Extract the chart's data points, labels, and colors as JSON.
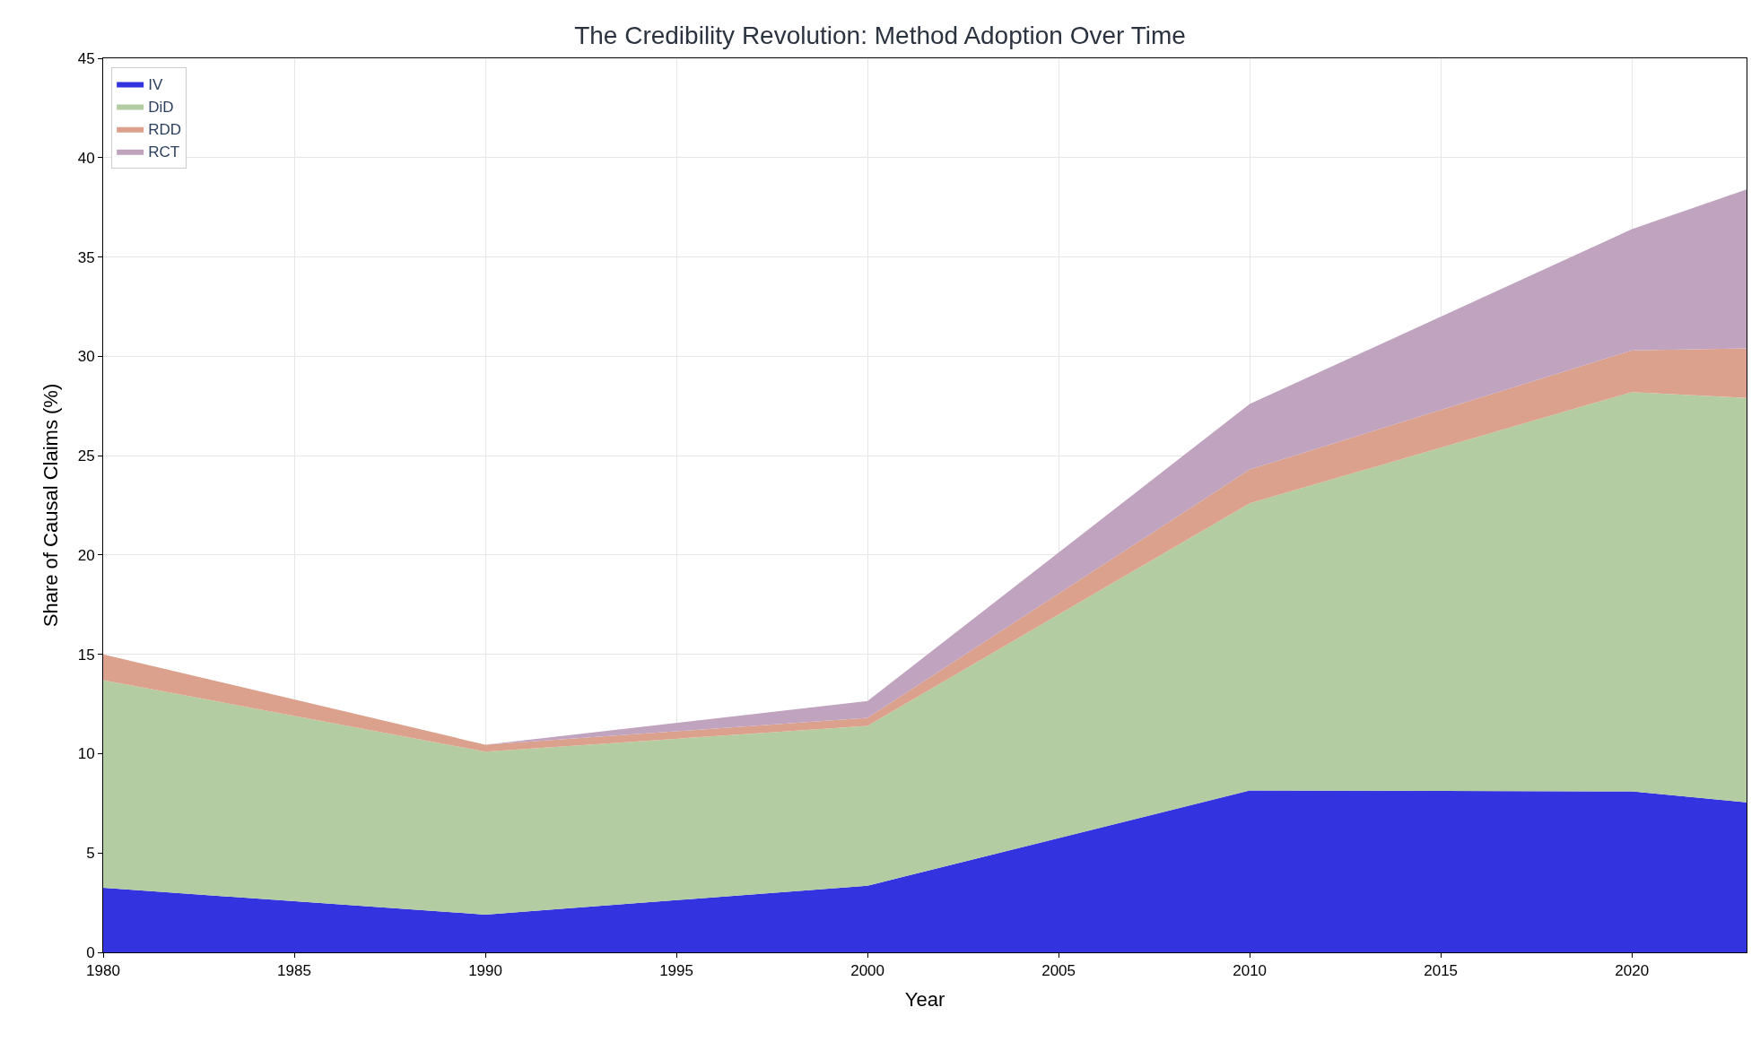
{
  "chart_data": {
    "type": "area",
    "stacked": true,
    "title": "The Credibility Revolution: Method Adoption Over Time",
    "xlabel": "Year",
    "ylabel": "Share of Causal Claims (%)",
    "x": [
      1980,
      1990,
      2000,
      2010,
      2020,
      2023
    ],
    "series": [
      {
        "name": "IV",
        "color": "#3333e0",
        "values": [
          3.25,
          1.9,
          3.35,
          8.15,
          8.1,
          7.55
        ]
      },
      {
        "name": "DiD",
        "color": "#b4cca1",
        "values": [
          10.45,
          8.2,
          8.05,
          14.45,
          20.1,
          20.35
        ]
      },
      {
        "name": "RDD",
        "color": "#dca18d",
        "values": [
          1.3,
          0.35,
          0.4,
          1.7,
          2.1,
          2.5
        ]
      },
      {
        "name": "RCT",
        "color": "#c0a4bf",
        "values": [
          0,
          0,
          0.85,
          3.3,
          6.1,
          8.0
        ]
      }
    ],
    "xlim": [
      1980,
      2023
    ],
    "xticks": [
      1980,
      1985,
      1990,
      1995,
      2000,
      2005,
      2010,
      2015,
      2020
    ],
    "ylim": [
      0,
      45
    ],
    "yticks": [
      0,
      5,
      10,
      15,
      20,
      25,
      30,
      35,
      40,
      45
    ],
    "grid": true,
    "legend": "top left"
  }
}
